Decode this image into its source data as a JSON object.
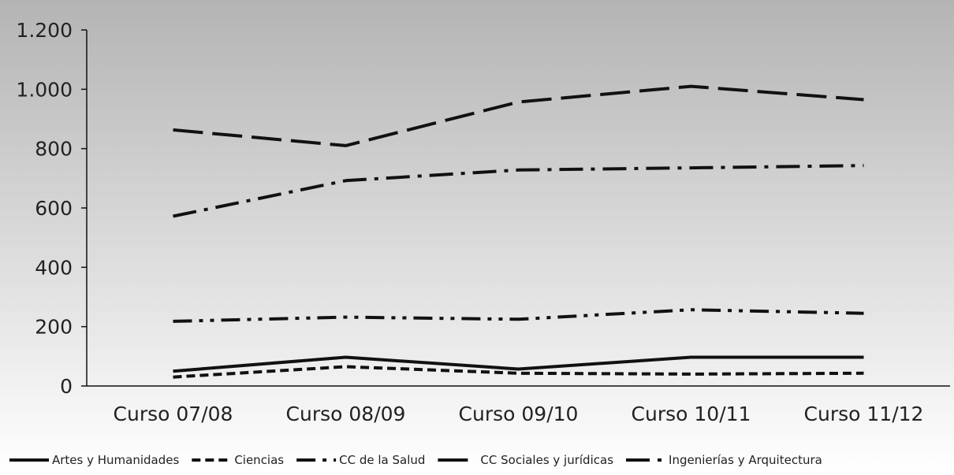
{
  "chart_data": {
    "type": "line",
    "title": "",
    "xlabel": "",
    "ylabel": "",
    "categories": [
      "Curso 07/08",
      "Curso 08/09",
      "Curso 09/10",
      "Curso 10/11",
      "Curso 11/12"
    ],
    "ylim": [
      0,
      1200
    ],
    "yticks": [
      0,
      200,
      400,
      600,
      800,
      1000,
      1200
    ],
    "ytick_labels": [
      "0",
      "200",
      "400",
      "600",
      "800",
      "1.000",
      "1.200"
    ],
    "grid": false,
    "legend_position": "bottom",
    "background": "gradient-gray",
    "series": [
      {
        "name": "Artes y Humanidades",
        "values": [
          50,
          97,
          57,
          97,
          97
        ],
        "dash": "solid"
      },
      {
        "name": "Ciencias",
        "values": [
          30,
          65,
          43,
          40,
          43
        ],
        "dash": "dash"
      },
      {
        "name": "CC de la Salud",
        "values": [
          218,
          232,
          225,
          257,
          245
        ],
        "dash": "dash-dot-dot"
      },
      {
        "name": "CC Sociales y jurídicas",
        "values": [
          863,
          810,
          957,
          1010,
          965
        ],
        "dash": "long-dash"
      },
      {
        "name": "Ingenierías y Arquitectura",
        "values": [
          572,
          692,
          728,
          735,
          743
        ],
        "dash": "dash-dot"
      }
    ]
  }
}
